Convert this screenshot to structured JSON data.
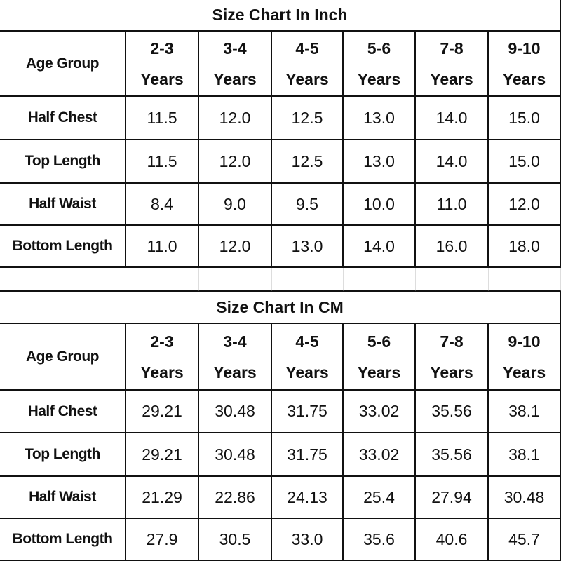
{
  "tables": [
    {
      "title": "Size Chart In Inch",
      "header": {
        "label": "Age Group",
        "columns": [
          {
            "range": "2-3",
            "unit": "Years"
          },
          {
            "range": "3-4",
            "unit": "Years"
          },
          {
            "range": "4-5",
            "unit": "Years"
          },
          {
            "range": "5-6",
            "unit": "Years"
          },
          {
            "range": "7-8",
            "unit": "Years"
          },
          {
            "range": "9-10",
            "unit": "Years"
          }
        ]
      },
      "rows": [
        {
          "label": "Half Chest",
          "cells": [
            "11.5",
            "12.0",
            "12.5",
            "13.0",
            "14.0",
            "15.0"
          ]
        },
        {
          "label": "Top Length",
          "cells": [
            "11.5",
            "12.0",
            "12.5",
            "13.0",
            "14.0",
            "15.0"
          ]
        },
        {
          "label": "Half Waist",
          "cells": [
            "8.4",
            "9.0",
            "9.5",
            "10.0",
            "11.0",
            "12.0"
          ]
        },
        {
          "label": "Bottom Length",
          "cells": [
            "11.0",
            "12.0",
            "13.0",
            "14.0",
            "16.0",
            "18.0"
          ]
        }
      ]
    },
    {
      "title": "Size Chart In CM",
      "header": {
        "label": "Age Group",
        "columns": [
          {
            "range": "2-3",
            "unit": "Years"
          },
          {
            "range": "3-4",
            "unit": "Years"
          },
          {
            "range": "4-5",
            "unit": "Years"
          },
          {
            "range": "5-6",
            "unit": "Years"
          },
          {
            "range": "7-8",
            "unit": "Years"
          },
          {
            "range": "9-10",
            "unit": "Years"
          }
        ]
      },
      "rows": [
        {
          "label": "Half Chest",
          "cells": [
            "29.21",
            "30.48",
            "31.75",
            "33.02",
            "35.56",
            "38.1"
          ]
        },
        {
          "label": "Top Length",
          "cells": [
            "29.21",
            "30.48",
            "31.75",
            "33.02",
            "35.56",
            "38.1"
          ]
        },
        {
          "label": "Half Waist",
          "cells": [
            "21.29",
            "22.86",
            "24.13",
            "25.4",
            "27.94",
            "30.48"
          ]
        },
        {
          "label": "Bottom Length",
          "cells": [
            "27.9",
            "30.5",
            "33.0",
            "35.6",
            "40.6",
            "45.7"
          ]
        }
      ]
    }
  ]
}
